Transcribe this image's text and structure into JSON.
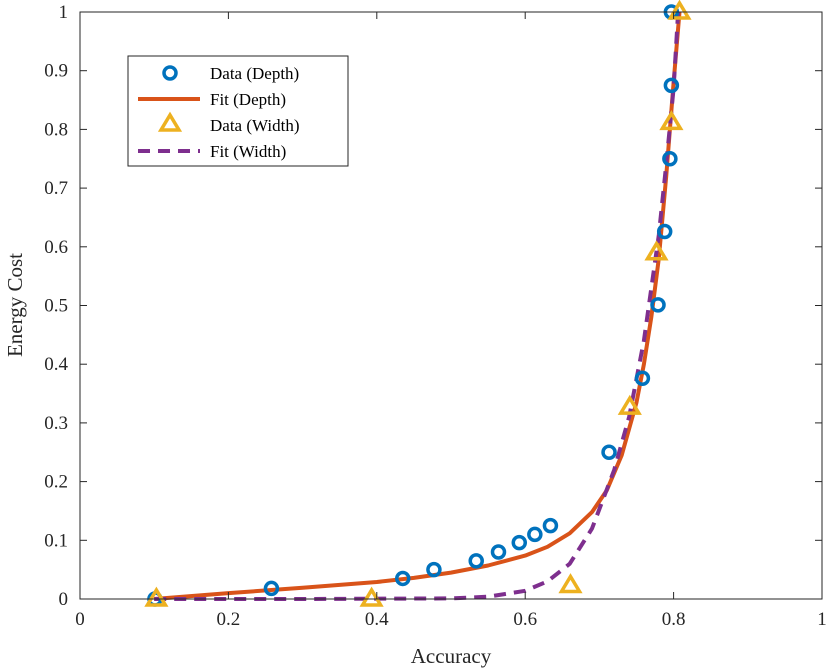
{
  "chart_data": {
    "type": "scatter",
    "xlabel": "Accuracy",
    "ylabel": "Energy Cost",
    "xlim": [
      0,
      1
    ],
    "ylim": [
      0,
      1
    ],
    "xticks": [
      0,
      0.2,
      0.4,
      0.6,
      0.8,
      1
    ],
    "yticks": [
      0,
      0.1,
      0.2,
      0.3,
      0.4,
      0.5,
      0.6,
      0.7,
      0.8,
      0.9,
      1
    ],
    "xtick_labels": [
      "0",
      "0.2",
      "0.4",
      "0.6",
      "0.8",
      "1"
    ],
    "ytick_labels": [
      "0",
      "0.1",
      "0.2",
      "0.3",
      "0.4",
      "0.5",
      "0.6",
      "0.7",
      "0.8",
      "0.9",
      "1"
    ],
    "grid": false,
    "legend_position": "top-left",
    "series": [
      {
        "name": "Data (Depth)",
        "kind": "markers",
        "marker": "circle",
        "color": "#0072BD",
        "points": [
          [
            0.101,
            0.0
          ],
          [
            0.258,
            0.018
          ],
          [
            0.435,
            0.035
          ],
          [
            0.477,
            0.05
          ],
          [
            0.534,
            0.065
          ],
          [
            0.564,
            0.08
          ],
          [
            0.592,
            0.096
          ],
          [
            0.613,
            0.11
          ],
          [
            0.634,
            0.125
          ],
          [
            0.713,
            0.25
          ],
          [
            0.758,
            0.376
          ],
          [
            0.779,
            0.501
          ],
          [
            0.788,
            0.626
          ],
          [
            0.795,
            0.75
          ],
          [
            0.797,
            0.875
          ],
          [
            0.797,
            1.0
          ]
        ]
      },
      {
        "name": "Fit (Depth)",
        "kind": "line",
        "style": "solid",
        "color": "#D95319",
        "points": [
          [
            0.1,
            0.0
          ],
          [
            0.2,
            0.01
          ],
          [
            0.3,
            0.019
          ],
          [
            0.4,
            0.029
          ],
          [
            0.45,
            0.036
          ],
          [
            0.5,
            0.045
          ],
          [
            0.55,
            0.057
          ],
          [
            0.6,
            0.074
          ],
          [
            0.63,
            0.089
          ],
          [
            0.66,
            0.112
          ],
          [
            0.69,
            0.148
          ],
          [
            0.71,
            0.185
          ],
          [
            0.73,
            0.245
          ],
          [
            0.75,
            0.335
          ],
          [
            0.76,
            0.4
          ],
          [
            0.77,
            0.48
          ],
          [
            0.78,
            0.58
          ],
          [
            0.79,
            0.72
          ],
          [
            0.8,
            0.88
          ],
          [
            0.808,
            1.0
          ]
        ]
      },
      {
        "name": "Data (Width)",
        "kind": "markers",
        "marker": "triangle",
        "color": "#EDB120",
        "points": [
          [
            0.103,
            0.0
          ],
          [
            0.393,
            0.0
          ],
          [
            0.661,
            0.023
          ],
          [
            0.741,
            0.327
          ],
          [
            0.777,
            0.59
          ],
          [
            0.797,
            0.812
          ],
          [
            0.808,
            1.0
          ]
        ]
      },
      {
        "name": "Fit (Width)",
        "kind": "line",
        "style": "dashed",
        "color": "#7E2F8E",
        "points": [
          [
            0.1,
            0.0
          ],
          [
            0.3,
            0.0
          ],
          [
            0.5,
            0.001
          ],
          [
            0.55,
            0.004
          ],
          [
            0.6,
            0.014
          ],
          [
            0.63,
            0.03
          ],
          [
            0.66,
            0.06
          ],
          [
            0.69,
            0.12
          ],
          [
            0.72,
            0.22
          ],
          [
            0.74,
            0.31
          ],
          [
            0.76,
            0.44
          ],
          [
            0.78,
            0.62
          ],
          [
            0.79,
            0.74
          ],
          [
            0.8,
            0.87
          ],
          [
            0.806,
            1.0
          ]
        ]
      }
    ]
  }
}
